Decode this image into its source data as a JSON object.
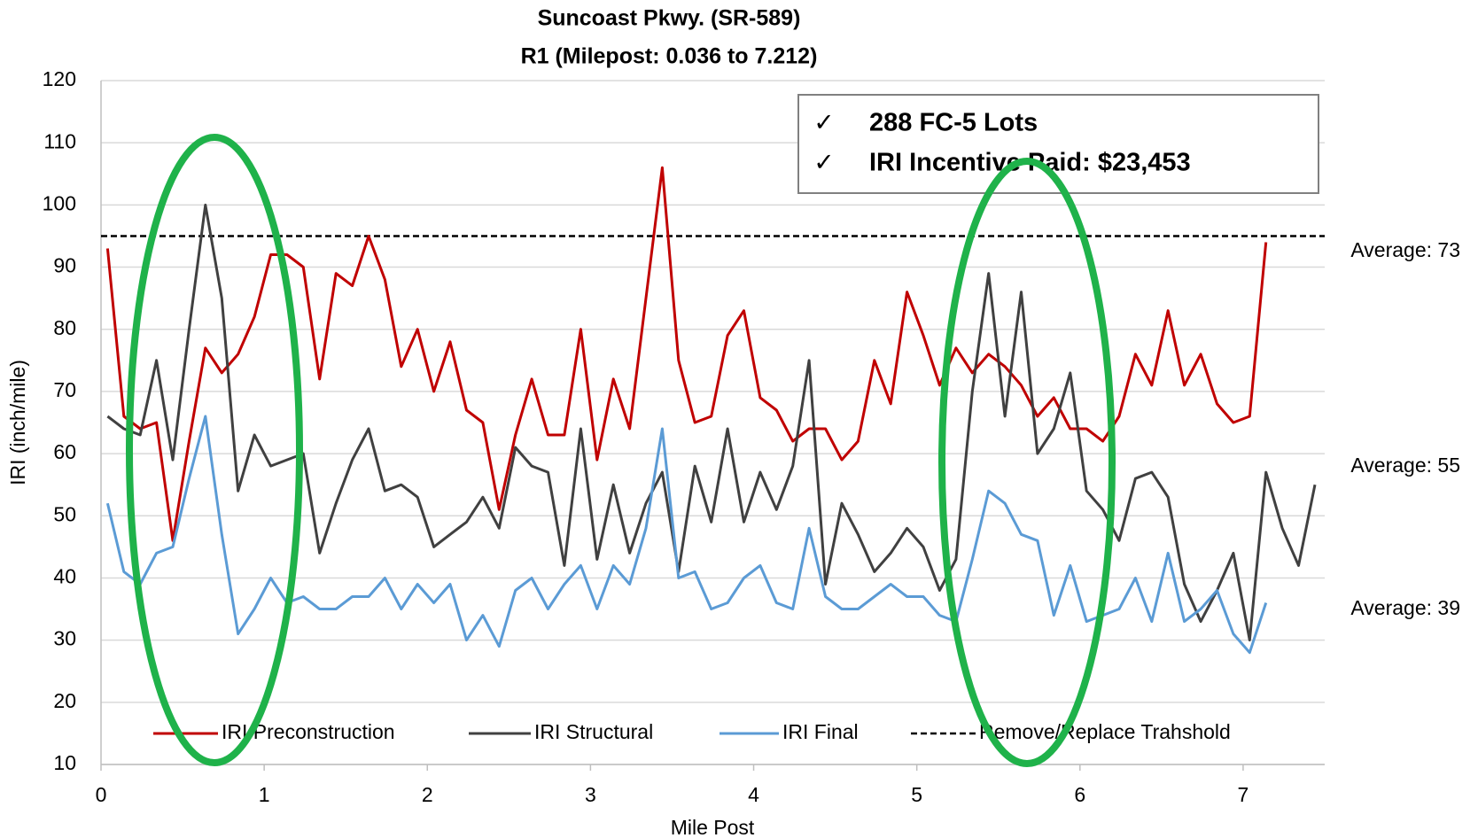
{
  "chart_data": {
    "type": "line",
    "title": "Suncoast Pkwy. (SR-589)",
    "subtitle": "R1 (Milepost: 0.036 to 7.212)",
    "x_label": "Mile Post",
    "y_label": "IRI (inch/mile)",
    "xlim": [
      0,
      7.5
    ],
    "xticks": [
      0,
      1,
      2,
      3,
      4,
      5,
      6,
      7
    ],
    "ylim": [
      10,
      120
    ],
    "yticks": [
      10,
      20,
      30,
      40,
      50,
      60,
      70,
      80,
      90,
      100,
      110,
      120
    ],
    "grid": true,
    "x": [
      0.04,
      0.14,
      0.24,
      0.34,
      0.44,
      0.54,
      0.64,
      0.74,
      0.84,
      0.94,
      1.04,
      1.14,
      1.24,
      1.34,
      1.44,
      1.54,
      1.64,
      1.74,
      1.84,
      1.94,
      2.04,
      2.14,
      2.24,
      2.34,
      2.44,
      2.54,
      2.64,
      2.74,
      2.84,
      2.94,
      3.04,
      3.14,
      3.24,
      3.34,
      3.44,
      3.54,
      3.64,
      3.74,
      3.84,
      3.94,
      4.04,
      4.14,
      4.24,
      4.34,
      4.44,
      4.54,
      4.64,
      4.74,
      4.84,
      4.94,
      5.04,
      5.14,
      5.24,
      5.34,
      5.44,
      5.54,
      5.64,
      5.74,
      5.84,
      5.94,
      6.04,
      6.14,
      6.24,
      6.34,
      6.44,
      6.54,
      6.64,
      6.74,
      6.84,
      6.94,
      7.04,
      7.14,
      7.24,
      7.34,
      7.44
    ],
    "series": [
      {
        "name": "IRI Preconstruction",
        "color": "#c00000",
        "values": [
          93,
          66,
          64,
          65,
          46,
          62,
          77,
          73,
          76,
          82,
          92,
          92,
          90,
          72,
          89,
          87,
          95,
          88,
          74,
          80,
          70,
          78,
          67,
          65,
          51,
          63,
          72,
          63,
          63,
          80,
          59,
          72,
          64,
          85,
          106,
          75,
          65,
          66,
          79,
          83,
          69,
          67,
          62,
          64,
          64,
          59,
          62,
          75,
          68,
          86,
          79,
          71,
          77,
          73,
          76,
          74,
          71,
          66,
          69,
          64,
          64,
          62,
          66,
          76,
          71,
          83,
          71,
          76,
          68,
          65,
          66,
          94,
          null,
          null,
          null
        ]
      },
      {
        "name": "IRI Structural",
        "color": "#404040",
        "values": [
          66,
          64,
          63,
          75,
          59,
          80,
          100,
          85,
          54,
          63,
          58,
          59,
          60,
          44,
          52,
          59,
          64,
          54,
          55,
          53,
          45,
          47,
          49,
          53,
          48,
          61,
          58,
          57,
          42,
          64,
          43,
          55,
          44,
          52,
          57,
          41,
          58,
          49,
          64,
          49,
          57,
          51,
          58,
          75,
          39,
          52,
          47,
          41,
          44,
          48,
          45,
          38,
          43,
          70,
          89,
          66,
          86,
          60,
          64,
          73,
          54,
          51,
          46,
          56,
          57,
          53,
          39,
          33,
          38,
          44,
          30,
          57,
          48,
          42,
          55
        ]
      },
      {
        "name": "IRI Final",
        "color": "#5b9bd5",
        "values": [
          52,
          41,
          39,
          44,
          45,
          56,
          66,
          47,
          31,
          35,
          40,
          36,
          37,
          35,
          35,
          37,
          37,
          40,
          35,
          39,
          36,
          39,
          30,
          34,
          29,
          38,
          40,
          35,
          39,
          42,
          35,
          42,
          39,
          48,
          64,
          40,
          41,
          35,
          36,
          40,
          42,
          36,
          35,
          48,
          37,
          35,
          35,
          37,
          39,
          37,
          37,
          34,
          33,
          43,
          54,
          52,
          47,
          46,
          34,
          42,
          33,
          34,
          35,
          40,
          33,
          44,
          33,
          35,
          38,
          31,
          28,
          36,
          null,
          null,
          null
        ]
      }
    ],
    "threshold": {
      "name": "Remove/Replace Trahshold",
      "value": 95,
      "color": "#000000"
    },
    "annotations": [
      {
        "text": "Average: 73",
        "color": "#c00000"
      },
      {
        "text": "Average: 55",
        "color": "#404040"
      },
      {
        "text": "Average: 39",
        "color": "#5b9bd5"
      }
    ],
    "box_bullet": "✓",
    "box_items": [
      "288 FC-5 Lots",
      "IRI Incentive Paid: $23,453"
    ]
  }
}
